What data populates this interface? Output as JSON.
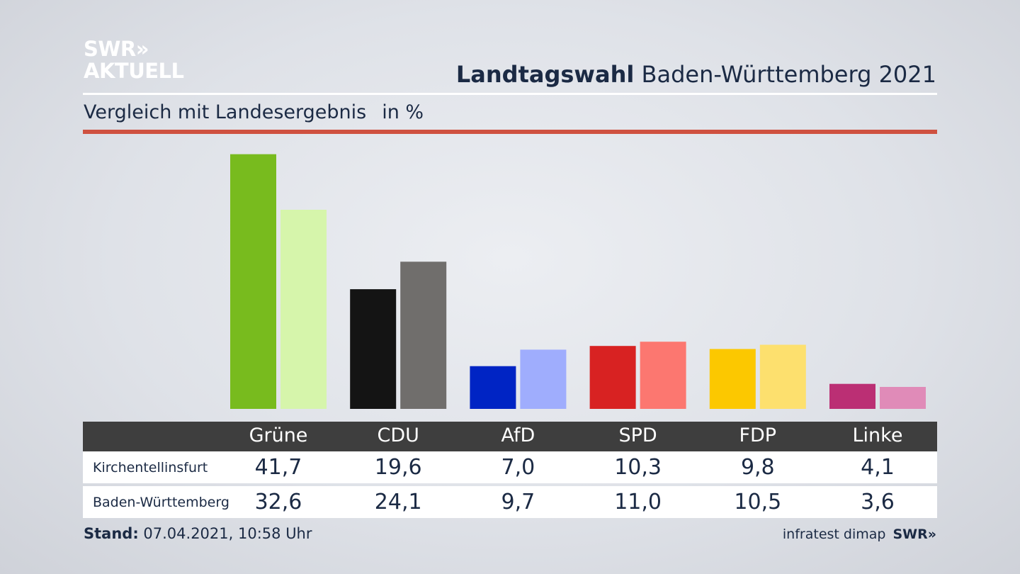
{
  "logo": {
    "line1": "SWR»",
    "line2": "AKTUELL"
  },
  "header": {
    "title_bold": "Landtagswahl",
    "title_rest": "Baden-Württemberg 2021"
  },
  "subtitle": {
    "text": "Vergleich mit Landesergebnis",
    "unit": "in %"
  },
  "colors": {
    "accent_red": "#cf5140",
    "table_header": "#3e3e3e"
  },
  "chart_data": {
    "type": "bar",
    "title": "Landtagswahl Baden-Württemberg 2021",
    "subtitle": "Vergleich mit Landesergebnis",
    "ylabel": "in %",
    "categories": [
      "Grüne",
      "CDU",
      "AfD",
      "SPD",
      "FDP",
      "Linke"
    ],
    "series": [
      {
        "name": "Kirchentellinsfurt",
        "values": [
          41.7,
          19.6,
          7.0,
          10.3,
          9.8,
          4.1
        ],
        "display": [
          "41,7",
          "19,6",
          "7,0",
          "10,3",
          "9,8",
          "4,1"
        ],
        "colors": [
          "#78bb1e",
          "#141414",
          "#0024c4",
          "#d82222",
          "#fcc800",
          "#bb2f74"
        ]
      },
      {
        "name": "Baden-Württemberg",
        "values": [
          32.6,
          24.1,
          9.7,
          11.0,
          10.5,
          3.6
        ],
        "display": [
          "32,6",
          "24,1",
          "9,7",
          "11,0",
          "10,5",
          "3,6"
        ],
        "colors": [
          "#d6f5ab",
          "#706e6c",
          "#9fadfd",
          "#fc7770",
          "#fde06e",
          "#e08bb8"
        ]
      }
    ],
    "ylim": [
      0,
      42
    ],
    "grid": false,
    "legend": "table-below"
  },
  "footer": {
    "stand_label": "Stand:",
    "stand_value": "07.04.2021, 10:58 Uhr",
    "source": "infratest dimap",
    "brand": "SWR»"
  }
}
